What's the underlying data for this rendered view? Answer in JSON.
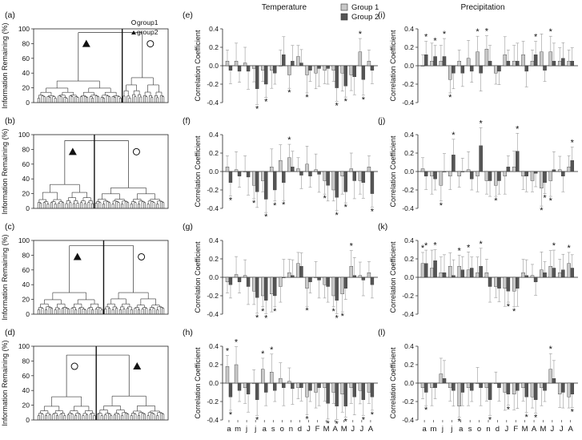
{
  "figure": {
    "col_titles": {
      "temperature": "Temperature",
      "precipitation": "Precipitation"
    },
    "legend_bar": [
      {
        "label": "Group 1",
        "color": "#c8c8c8"
      },
      {
        "label": "Group 2",
        "color": "#555555"
      }
    ],
    "legend_dendro": [
      "group1",
      "group2"
    ],
    "dendro_ylabel": "Information Remaining (%)",
    "bar_ylabel": "Correlation Coefficient",
    "month_labels": [
      "a",
      "m",
      "j",
      "j",
      "a",
      "s",
      "o",
      "n",
      "d",
      "J",
      "F",
      "M",
      "A",
      "M",
      "J",
      "J",
      "A"
    ],
    "dendro_panels": [
      {
        "label": "(a)",
        "split_fraction": 0.66,
        "group1_side": "right",
        "group2_side": "left"
      },
      {
        "label": "(b)",
        "split_fraction": 0.45,
        "group1_side": "right",
        "group2_side": "left"
      },
      {
        "label": "(c)",
        "split_fraction": 0.52,
        "group1_side": "right",
        "group2_side": "left"
      },
      {
        "label": "(d)",
        "split_fraction": 0.46,
        "group1_side": "left",
        "group2_side": "right"
      }
    ]
  },
  "chart_data": [
    {
      "type": "dendrogram",
      "label": "(a)",
      "ylabel": "Information Remaining (%)",
      "yticks": [
        0,
        20,
        40,
        60,
        80,
        100
      ],
      "ylim": [
        0,
        100
      ],
      "groups": [
        {
          "name": "group2",
          "marker": "triangle",
          "leaves": 46
        },
        {
          "name": "group1",
          "marker": "circle",
          "leaves": 23
        }
      ],
      "root_height": 95,
      "group_merge_heights": [
        65,
        75
      ]
    },
    {
      "type": "dendrogram",
      "label": "(b)",
      "ylabel": "Information Remaining (%)",
      "yticks": [
        0,
        20,
        40,
        60,
        80,
        100
      ],
      "ylim": [
        0,
        100
      ],
      "groups": [
        {
          "name": "group2",
          "marker": "triangle",
          "leaves": 31
        },
        {
          "name": "group1",
          "marker": "circle",
          "leaves": 38
        }
      ],
      "root_height": 92,
      "group_merge_heights": [
        72,
        62
      ]
    },
    {
      "type": "dendrogram",
      "label": "(c)",
      "ylabel": "Information Remaining (%)",
      "yticks": [
        0,
        20,
        40,
        60,
        80,
        100
      ],
      "ylim": [
        0,
        100
      ],
      "groups": [
        {
          "name": "group2",
          "marker": "triangle",
          "leaves": 36
        },
        {
          "name": "group1",
          "marker": "circle",
          "leaves": 33
        }
      ],
      "root_height": 93,
      "group_merge_heights": [
        65,
        65
      ]
    },
    {
      "type": "dendrogram",
      "label": "(d)",
      "ylabel": "Information Remaining (%)",
      "yticks": [
        0,
        20,
        40,
        60,
        80,
        100
      ],
      "ylim": [
        0,
        100
      ],
      "groups": [
        {
          "name": "group1",
          "marker": "circle",
          "leaves": 32
        },
        {
          "name": "group2",
          "marker": "triangle",
          "leaves": 37
        }
      ],
      "root_height": 88,
      "group_merge_heights": [
        70,
        72
      ]
    },
    {
      "type": "bar",
      "label": "(e)",
      "ylabel": "Correlation Coefficient",
      "ylim": [
        -0.4,
        0.4
      ],
      "yticks": [
        -0.4,
        -0.2,
        0,
        0.2,
        0.4
      ],
      "categories": [
        "a",
        "m",
        "j",
        "j",
        "a",
        "s",
        "o",
        "n",
        "d",
        "J",
        "F",
        "M",
        "A",
        "M",
        "J",
        "J",
        "A"
      ],
      "series": [
        {
          "name": "Group 1",
          "values": [
            0.05,
            0.05,
            0.03,
            -0.03,
            -0.05,
            -0.05,
            0.0,
            -0.1,
            0.1,
            -0.1,
            -0.08,
            -0.05,
            -0.05,
            -0.08,
            -0.1,
            0.15,
            0.05
          ]
        },
        {
          "name": "Group 2",
          "values": [
            -0.05,
            -0.06,
            -0.06,
            -0.25,
            -0.2,
            -0.08,
            0.12,
            0.05,
            0.03,
            -0.05,
            -0.03,
            -0.03,
            -0.24,
            -0.22,
            -0.12,
            -0.15,
            -0.05
          ]
        }
      ],
      "significant": [
        {
          "series": "Group 2",
          "index": 3
        },
        {
          "series": "Group 2",
          "index": 4
        },
        {
          "series": "Group 1",
          "index": 7
        },
        {
          "series": "Group 1",
          "index": 9
        },
        {
          "series": "Group 2",
          "index": 12
        },
        {
          "series": "Group 2",
          "index": 13
        },
        {
          "series": "Group 1",
          "index": 15
        },
        {
          "series": "Group 2",
          "index": 15
        }
      ]
    },
    {
      "type": "bar",
      "label": "(f)",
      "ylabel": "Correlation Coefficient",
      "ylim": [
        -0.4,
        0.4
      ],
      "yticks": [
        -0.4,
        -0.2,
        0,
        0.2,
        0.4
      ],
      "categories": [
        "a",
        "m",
        "j",
        "j",
        "a",
        "s",
        "o",
        "n",
        "d",
        "J",
        "F",
        "M",
        "A",
        "M",
        "J",
        "J",
        "A"
      ],
      "series": [
        {
          "name": "Group 1",
          "values": [
            0.05,
            0.02,
            0.0,
            -0.15,
            -0.1,
            0.05,
            0.12,
            0.15,
            0.03,
            0.08,
            0.02,
            -0.1,
            -0.2,
            -0.05,
            0.03,
            -0.1,
            0.05
          ]
        },
        {
          "name": "Group 2",
          "values": [
            -0.12,
            -0.05,
            -0.06,
            -0.22,
            -0.3,
            -0.2,
            -0.12,
            0.05,
            -0.04,
            -0.05,
            -0.03,
            -0.15,
            -0.28,
            -0.22,
            -0.1,
            -0.12,
            -0.24
          ]
        }
      ],
      "significant": [
        {
          "series": "Group 2",
          "index": 0
        },
        {
          "series": "Group 1",
          "index": 3
        },
        {
          "series": "Group 2",
          "index": 4
        },
        {
          "series": "Group 2",
          "index": 5
        },
        {
          "series": "Group 2",
          "index": 6
        },
        {
          "series": "Group 1",
          "index": 7
        },
        {
          "series": "Group 1",
          "index": 11
        },
        {
          "series": "Group 2",
          "index": 12
        },
        {
          "series": "Group 2",
          "index": 13
        },
        {
          "series": "Group 2",
          "index": 16
        }
      ]
    },
    {
      "type": "bar",
      "label": "(g)",
      "ylabel": "Correlation Coefficient",
      "ylim": [
        -0.4,
        0.4
      ],
      "yticks": [
        -0.4,
        -0.2,
        0,
        0.2,
        0.4
      ],
      "categories": [
        "a",
        "m",
        "j",
        "j",
        "a",
        "s",
        "o",
        "n",
        "d",
        "J",
        "F",
        "M",
        "A",
        "M",
        "J",
        "J",
        "A"
      ],
      "series": [
        {
          "name": "Group 1",
          "values": [
            -0.05,
            0.03,
            0.02,
            -0.15,
            -0.2,
            -0.18,
            -0.1,
            0.05,
            0.15,
            -0.12,
            0.0,
            -0.08,
            -0.2,
            -0.18,
            0.12,
            0.02,
            0.05
          ]
        },
        {
          "name": "Group 2",
          "values": [
            -0.08,
            -0.05,
            -0.1,
            -0.22,
            -0.25,
            -0.2,
            0.0,
            0.02,
            0.12,
            -0.05,
            -0.03,
            -0.1,
            -0.25,
            -0.12,
            0.02,
            -0.03,
            -0.08
          ]
        }
      ],
      "significant": [
        {
          "series": "Group 2",
          "index": 3
        },
        {
          "series": "Group 1",
          "index": 4
        },
        {
          "series": "Group 2",
          "index": 4
        },
        {
          "series": "Group 2",
          "index": 5
        },
        {
          "series": "Group 1",
          "index": 9
        },
        {
          "series": "Group 1",
          "index": 12
        },
        {
          "series": "Group 2",
          "index": 12
        },
        {
          "series": "Group 1",
          "index": 13
        },
        {
          "series": "Group 1",
          "index": 14
        }
      ]
    },
    {
      "type": "bar",
      "label": "(h)",
      "ylabel": "Correlation Coefficient",
      "ylim": [
        -0.4,
        0.4
      ],
      "yticks": [
        -0.4,
        -0.2,
        0,
        0.2,
        0.4
      ],
      "categories": [
        "a",
        "m",
        "j",
        "j",
        "a",
        "s",
        "o",
        "n",
        "d",
        "J",
        "F",
        "M",
        "A",
        "M",
        "J",
        "J",
        "A"
      ],
      "series": [
        {
          "name": "Group 1",
          "values": [
            0.18,
            0.2,
            -0.05,
            0.0,
            0.15,
            0.12,
            0.05,
            0.02,
            -0.05,
            -0.15,
            -0.1,
            -0.05,
            -0.1,
            -0.12,
            -0.05,
            -0.08,
            -0.1
          ]
        },
        {
          "name": "Group 2",
          "values": [
            -0.15,
            -0.08,
            -0.12,
            -0.18,
            -0.1,
            -0.08,
            -0.05,
            -0.06,
            -0.05,
            -0.08,
            -0.05,
            -0.22,
            -0.25,
            -0.25,
            -0.15,
            -0.18,
            -0.15
          ]
        }
      ],
      "significant": [
        {
          "series": "Group 1",
          "index": 0
        },
        {
          "series": "Group 2",
          "index": 0
        },
        {
          "series": "Group 1",
          "index": 1
        },
        {
          "series": "Group 2",
          "index": 3
        },
        {
          "series": "Group 1",
          "index": 4
        },
        {
          "series": "Group 1",
          "index": 5
        },
        {
          "series": "Group 1",
          "index": 9
        },
        {
          "series": "Group 2",
          "index": 11
        },
        {
          "series": "Group 2",
          "index": 12
        },
        {
          "series": "Group 2",
          "index": 13
        },
        {
          "series": "Group 2",
          "index": 15
        },
        {
          "series": "Group 2",
          "index": 16
        }
      ]
    },
    {
      "type": "bar",
      "label": "(i)",
      "ylabel": "Correlation Coefficient",
      "ylim": [
        -0.4,
        0.4
      ],
      "yticks": [
        -0.4,
        -0.2,
        0,
        0.2,
        0.4
      ],
      "categories": [
        "a",
        "m",
        "j",
        "j",
        "a",
        "s",
        "o",
        "n",
        "d",
        "J",
        "F",
        "M",
        "A",
        "M",
        "J",
        "J",
        "A"
      ],
      "series": [
        {
          "name": "Group 1",
          "values": [
            0.0,
            0.05,
            0.05,
            -0.15,
            0.05,
            0.08,
            0.15,
            0.18,
            -0.08,
            0.12,
            0.05,
            0.12,
            0.05,
            0.15,
            0.15,
            0.05,
            0.05
          ]
        },
        {
          "name": "Group 2",
          "values": [
            0.12,
            0.1,
            0.1,
            -0.08,
            -0.08,
            -0.06,
            -0.08,
            0.05,
            -0.06,
            0.05,
            0.05,
            -0.06,
            0.12,
            -0.05,
            0.05,
            0.08,
            0.05
          ]
        }
      ],
      "significant": [
        {
          "series": "Group 2",
          "index": 0
        },
        {
          "series": "Group 2",
          "index": 1
        },
        {
          "series": "Group 2",
          "index": 2
        },
        {
          "series": "Group 1",
          "index": 3
        },
        {
          "series": "Group 1",
          "index": 6
        },
        {
          "series": "Group 1",
          "index": 7
        },
        {
          "series": "Group 2",
          "index": 12
        },
        {
          "series": "Group 1",
          "index": 14
        }
      ]
    },
    {
      "type": "bar",
      "label": "(j)",
      "ylabel": "Correlation Coefficient",
      "ylim": [
        -0.4,
        0.4
      ],
      "yticks": [
        -0.4,
        -0.2,
        0,
        0.2,
        0.4
      ],
      "categories": [
        "a",
        "m",
        "j",
        "j",
        "a",
        "s",
        "o",
        "n",
        "d",
        "J",
        "F",
        "M",
        "A",
        "M",
        "J",
        "J",
        "A"
      ],
      "series": [
        {
          "name": "Group 1",
          "values": [
            0.03,
            -0.05,
            -0.15,
            -0.05,
            -0.05,
            0.02,
            -0.05,
            -0.1,
            -0.15,
            -0.05,
            0.05,
            -0.05,
            -0.1,
            -0.18,
            -0.1,
            0.02,
            0.05
          ]
        },
        {
          "name": "Group 2",
          "values": [
            -0.05,
            -0.08,
            0.0,
            0.18,
            0.0,
            -0.08,
            0.28,
            -0.1,
            -0.1,
            0.05,
            0.22,
            -0.05,
            -0.02,
            -0.12,
            0.02,
            -0.05,
            0.12
          ]
        }
      ],
      "significant": [
        {
          "series": "Group 1",
          "index": 2
        },
        {
          "series": "Group 2",
          "index": 3
        },
        {
          "series": "Group 2",
          "index": 6
        },
        {
          "series": "Group 1",
          "index": 8
        },
        {
          "series": "Group 2",
          "index": 10
        },
        {
          "series": "Group 1",
          "index": 13
        },
        {
          "series": "Group 2",
          "index": 13
        },
        {
          "series": "Group 1",
          "index": 14
        },
        {
          "series": "Group 2",
          "index": 16
        }
      ]
    },
    {
      "type": "bar",
      "label": "(k)",
      "ylabel": "Correlation Coefficient",
      "ylim": [
        -0.4,
        0.4
      ],
      "yticks": [
        -0.4,
        -0.2,
        0,
        0.2,
        0.4
      ],
      "categories": [
        "a",
        "m",
        "j",
        "j",
        "a",
        "s",
        "o",
        "n",
        "d",
        "J",
        "F",
        "M",
        "A",
        "M",
        "J",
        "J",
        "A"
      ],
      "series": [
        {
          "name": "Group 1",
          "values": [
            0.15,
            0.1,
            0.05,
            0.12,
            0.12,
            0.08,
            0.05,
            0.05,
            -0.1,
            -0.12,
            -0.15,
            0.05,
            0.02,
            0.08,
            0.12,
            0.05,
            0.15
          ]
        },
        {
          "name": "Group 2",
          "values": [
            0.15,
            0.18,
            0.05,
            0.02,
            0.08,
            0.1,
            0.12,
            -0.1,
            -0.12,
            -0.15,
            -0.12,
            0.02,
            -0.05,
            0.05,
            0.1,
            0.08,
            0.1
          ]
        }
      ],
      "significant": [
        {
          "series": "Group 1",
          "index": 0
        },
        {
          "series": "Group 2",
          "index": 0
        },
        {
          "series": "Group 2",
          "index": 1
        },
        {
          "series": "Group 1",
          "index": 4
        },
        {
          "series": "Group 1",
          "index": 5
        },
        {
          "series": "Group 2",
          "index": 6
        },
        {
          "series": "Group 2",
          "index": 9
        },
        {
          "series": "Group 1",
          "index": 10
        },
        {
          "series": "Group 2",
          "index": 14
        },
        {
          "series": "Group 1",
          "index": 16
        }
      ]
    },
    {
      "type": "bar",
      "label": "(l)",
      "ylabel": "Correlation Coefficient",
      "ylim": [
        -0.4,
        0.4
      ],
      "yticks": [
        -0.4,
        -0.2,
        0,
        0.2,
        0.4
      ],
      "categories": [
        "a",
        "m",
        "j",
        "j",
        "a",
        "s",
        "o",
        "n",
        "d",
        "J",
        "F",
        "M",
        "A",
        "M",
        "J",
        "J",
        "A"
      ],
      "series": [
        {
          "name": "Group 1",
          "values": [
            -0.05,
            -0.05,
            0.1,
            -0.05,
            -0.25,
            -0.05,
            0.0,
            -0.05,
            0.0,
            -0.1,
            -0.12,
            -0.05,
            -0.15,
            -0.05,
            0.15,
            -0.12,
            -0.15
          ]
        },
        {
          "name": "Group 2",
          "values": [
            -0.1,
            -0.05,
            0.05,
            -0.08,
            -0.1,
            -0.08,
            -0.05,
            -0.18,
            -0.05,
            -0.12,
            -0.08,
            -0.15,
            -0.18,
            -0.08,
            0.05,
            -0.1,
            -0.12
          ]
        }
      ],
      "significant": [
        {
          "series": "Group 2",
          "index": 0
        },
        {
          "series": "Group 1",
          "index": 4
        },
        {
          "series": "Group 2",
          "index": 7
        },
        {
          "series": "Group 2",
          "index": 9
        },
        {
          "series": "Group 2",
          "index": 11
        },
        {
          "series": "Group 2",
          "index": 12
        },
        {
          "series": "Group 1",
          "index": 14
        },
        {
          "series": "Group 2",
          "index": 16
        }
      ]
    }
  ]
}
